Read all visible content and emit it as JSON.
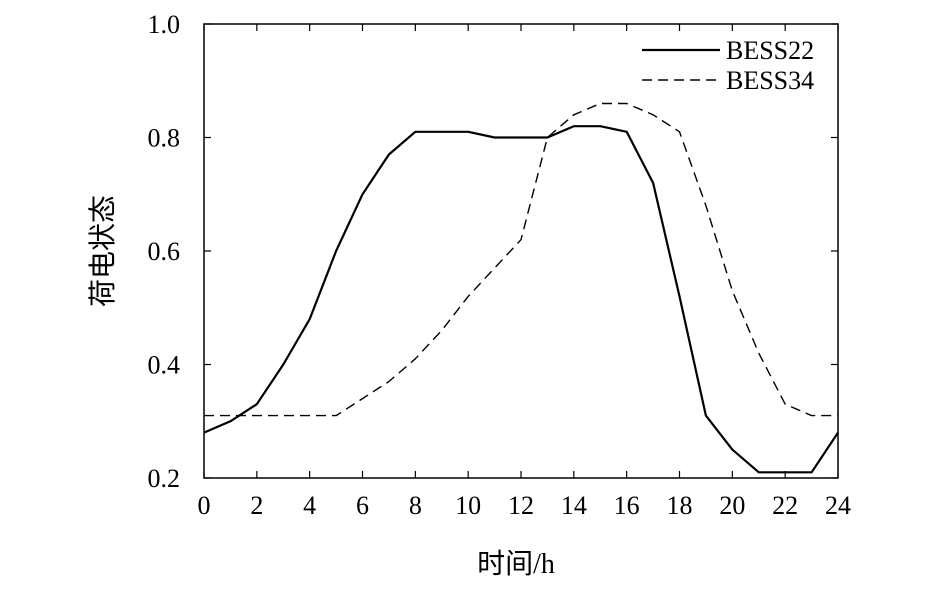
{
  "chart_data": {
    "type": "line",
    "title": "",
    "xlabel": "时间/h",
    "ylabel": "荷电状态",
    "xlim": [
      0,
      24
    ],
    "ylim": [
      0.2,
      1.0
    ],
    "x_ticks": [
      "0",
      "2",
      "4",
      "6",
      "8",
      "10",
      "12",
      "14",
      "16",
      "18",
      "20",
      "22",
      "24"
    ],
    "y_ticks": [
      "0.2",
      "0.4",
      "0.6",
      "0.8",
      "1.0"
    ],
    "grid": false,
    "legend_position": "top-right",
    "x": [
      0,
      1,
      2,
      3,
      4,
      5,
      6,
      7,
      8,
      9,
      10,
      11,
      12,
      13,
      14,
      15,
      16,
      17,
      18,
      19,
      20,
      21,
      22,
      23,
      24
    ],
    "series": [
      {
        "name": "BESS22",
        "line_style": "solid",
        "color": "#000000",
        "values": [
          0.28,
          0.3,
          0.33,
          0.4,
          0.48,
          0.6,
          0.7,
          0.77,
          0.81,
          0.81,
          0.81,
          0.8,
          0.8,
          0.8,
          0.82,
          0.82,
          0.81,
          0.72,
          0.52,
          0.31,
          0.25,
          0.21,
          0.21,
          0.21,
          0.28
        ]
      },
      {
        "name": "BESS34",
        "line_style": "dashed",
        "color": "#000000",
        "values": [
          0.31,
          0.31,
          0.31,
          0.31,
          0.31,
          0.31,
          0.34,
          0.37,
          0.41,
          0.46,
          0.52,
          0.57,
          0.62,
          0.8,
          0.84,
          0.86,
          0.86,
          0.84,
          0.81,
          0.68,
          0.53,
          0.42,
          0.33,
          0.31,
          0.31
        ]
      }
    ]
  }
}
